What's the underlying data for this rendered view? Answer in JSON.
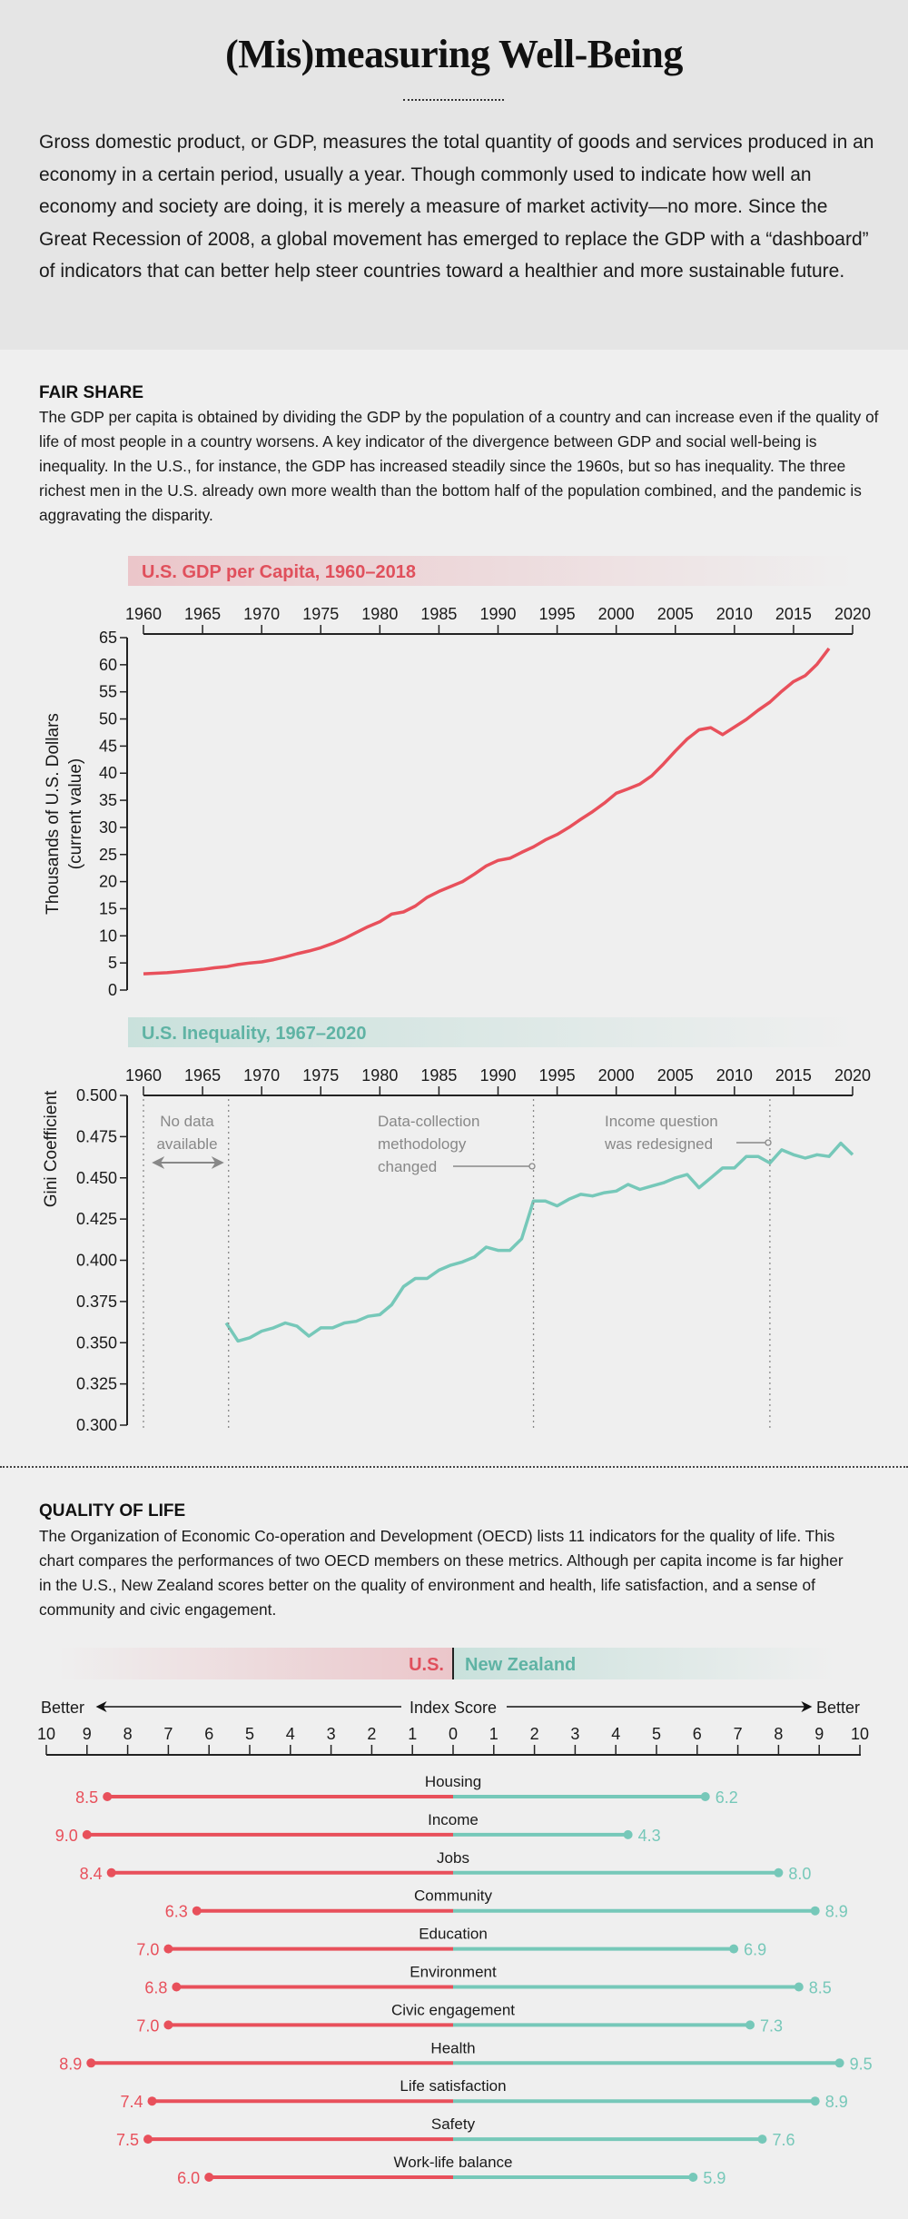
{
  "header": {
    "title": "(Mis)measuring Well-Being",
    "intro": "Gross domestic product, or GDP, measures the total quantity of goods and services produced in an economy in a certain period, usually a year. Though commonly used to indicate how well an economy and society are doing, it is merely a measure of market activity—no more. Since the Great Recession of 2008, a global movement has emerged to replace the GDP with a “dashboard” of indicators that can better help steer countries toward a healthier and more sustainable future."
  },
  "fair_share": {
    "heading": "FAIR SHARE",
    "text": "The GDP per capita is obtained by dividing the GDP by the population of a country and can increase even if the quality of life of most people in a country worsens. A key indicator of the divergence between GDP and social well-being is inequality. In the U.S., for instance, the GDP has increased steadily since the 1960s, but so has inequality. The three richest men in the U.S. already own more wealth than the bottom half of the population combined, and the pandemic is aggravating the disparity."
  },
  "quality_of_life": {
    "heading": "QUALITY OF LIFE",
    "text": "The Organization of Economic Co-operation and Development (OECD) lists 11 indicators for the quality of life. This chart compares the performances of two OECD members on these metrics. Although per capita income is far higher in the U.S., New Zealand scores better on the quality of environment and health, life satisfaction, and a sense of community and civic engagement."
  },
  "colors": {
    "us": "#e8505b",
    "nz": "#76c8b9",
    "us_text": "#e0505c",
    "nz_text": "#5fb3a4",
    "annotation": "#888888"
  },
  "chart_data": [
    {
      "type": "line",
      "title": "U.S. GDP per Capita, 1960–2018",
      "ylabel": "Thousands of U.S. Dollars",
      "ylabel2": "(current value)",
      "xlim": [
        1960,
        2020
      ],
      "ylim": [
        0,
        65
      ],
      "xticks": [
        1960,
        1965,
        1970,
        1975,
        1980,
        1985,
        1990,
        1995,
        2000,
        2005,
        2010,
        2015,
        2020
      ],
      "yticks": [
        0,
        5,
        10,
        15,
        20,
        25,
        30,
        35,
        40,
        45,
        50,
        55,
        60,
        65
      ],
      "x_axis_position": "top",
      "grid": false,
      "x": [
        1960,
        1961,
        1962,
        1963,
        1964,
        1965,
        1966,
        1967,
        1968,
        1969,
        1970,
        1971,
        1972,
        1973,
        1974,
        1975,
        1976,
        1977,
        1978,
        1979,
        1980,
        1981,
        1982,
        1983,
        1984,
        1985,
        1986,
        1987,
        1988,
        1989,
        1990,
        1991,
        1992,
        1993,
        1994,
        1995,
        1996,
        1997,
        1998,
        1999,
        2000,
        2001,
        2002,
        2003,
        2004,
        2005,
        2006,
        2007,
        2008,
        2009,
        2010,
        2011,
        2012,
        2013,
        2014,
        2015,
        2016,
        2017,
        2018
      ],
      "y": [
        3.0,
        3.1,
        3.2,
        3.4,
        3.6,
        3.8,
        4.1,
        4.3,
        4.7,
        5.0,
        5.2,
        5.6,
        6.1,
        6.7,
        7.2,
        7.8,
        8.6,
        9.5,
        10.6,
        11.7,
        12.6,
        14.0,
        14.4,
        15.5,
        17.1,
        18.2,
        19.1,
        20.0,
        21.4,
        22.9,
        23.9,
        24.3,
        25.4,
        26.4,
        27.7,
        28.7,
        30.0,
        31.5,
        32.9,
        34.5,
        36.3,
        37.1,
        38.0,
        39.5,
        41.7,
        44.1,
        46.3,
        48.0,
        48.4,
        47.1,
        48.5,
        49.9,
        51.6,
        53.1,
        55.1,
        56.9,
        58.0,
        60.1,
        63.0
      ],
      "color": "#e8505b"
    },
    {
      "type": "line",
      "title": "U.S. Inequality, 1967–2020",
      "ylabel": "Gini Coefficient",
      "xlim": [
        1960,
        2020
      ],
      "ylim": [
        0.3,
        0.5
      ],
      "xticks": [
        1960,
        1965,
        1970,
        1975,
        1980,
        1985,
        1990,
        1995,
        2000,
        2005,
        2010,
        2015,
        2020
      ],
      "yticks": [
        "0.300",
        "0.325",
        "0.350",
        "0.375",
        "0.400",
        "0.425",
        "0.450",
        "0.475",
        "0.500"
      ],
      "x_axis_position": "top",
      "grid": false,
      "x": [
        1967,
        1968,
        1969,
        1970,
        1971,
        1972,
        1973,
        1974,
        1975,
        1976,
        1977,
        1978,
        1979,
        1980,
        1981,
        1982,
        1983,
        1984,
        1985,
        1986,
        1987,
        1988,
        1989,
        1990,
        1991,
        1992,
        1993,
        1994,
        1995,
        1996,
        1997,
        1998,
        1999,
        2000,
        2001,
        2002,
        2003,
        2004,
        2005,
        2006,
        2007,
        2008,
        2009,
        2010,
        2011,
        2012,
        2013,
        2014,
        2015,
        2016,
        2017,
        2018,
        2019,
        2020
      ],
      "y": [
        0.362,
        0.351,
        0.353,
        0.357,
        0.359,
        0.362,
        0.36,
        0.354,
        0.359,
        0.359,
        0.362,
        0.363,
        0.366,
        0.367,
        0.373,
        0.384,
        0.389,
        0.389,
        0.394,
        0.397,
        0.399,
        0.402,
        0.408,
        0.406,
        0.406,
        0.413,
        0.436,
        0.436,
        0.433,
        0.437,
        0.44,
        0.439,
        0.441,
        0.442,
        0.446,
        0.443,
        0.445,
        0.447,
        0.45,
        0.452,
        0.444,
        0.45,
        0.456,
        0.456,
        0.463,
        0.463,
        0.459,
        0.467,
        0.464,
        0.462,
        0.464,
        0.463,
        0.471,
        0.464
      ],
      "color": "#76c8b9",
      "annotations": [
        {
          "text": [
            "No data",
            "available"
          ],
          "x_range": [
            1960,
            1967
          ]
        },
        {
          "text": [
            "Data-collection",
            "methodology",
            "changed"
          ],
          "x": 1993
        },
        {
          "text": [
            "Income question",
            "was redesigned"
          ],
          "x": 2013
        }
      ]
    },
    {
      "type": "bar",
      "orientation": "horizontal-diverging",
      "legend": [
        "U.S.",
        "New Zealand"
      ],
      "axis_label": "Index Score",
      "axis_left_label": "Better",
      "axis_right_label": "Better",
      "xlim": [
        0,
        10
      ],
      "ticks": [
        10,
        9,
        8,
        7,
        6,
        5,
        4,
        3,
        2,
        1,
        0,
        1,
        2,
        3,
        4,
        5,
        6,
        7,
        8,
        9,
        10
      ],
      "categories": [
        "Housing",
        "Income",
        "Jobs",
        "Community",
        "Education",
        "Environment",
        "Civic engagement",
        "Health",
        "Life satisfaction",
        "Safety",
        "Work-life balance"
      ],
      "series": [
        {
          "name": "U.S.",
          "values": [
            "8.5",
            "9.0",
            "8.4",
            "6.3",
            "7.0",
            "6.8",
            "7.0",
            "8.9",
            "7.4",
            "7.5",
            "6.0"
          ],
          "side": "left",
          "color": "#e8505b"
        },
        {
          "name": "New Zealand",
          "values": [
            "6.2",
            "4.3",
            "8.0",
            "8.9",
            "6.9",
            "8.5",
            "7.3",
            "9.5",
            "8.9",
            "7.6",
            "5.9"
          ],
          "side": "right",
          "color": "#76c8b9"
        }
      ]
    }
  ]
}
